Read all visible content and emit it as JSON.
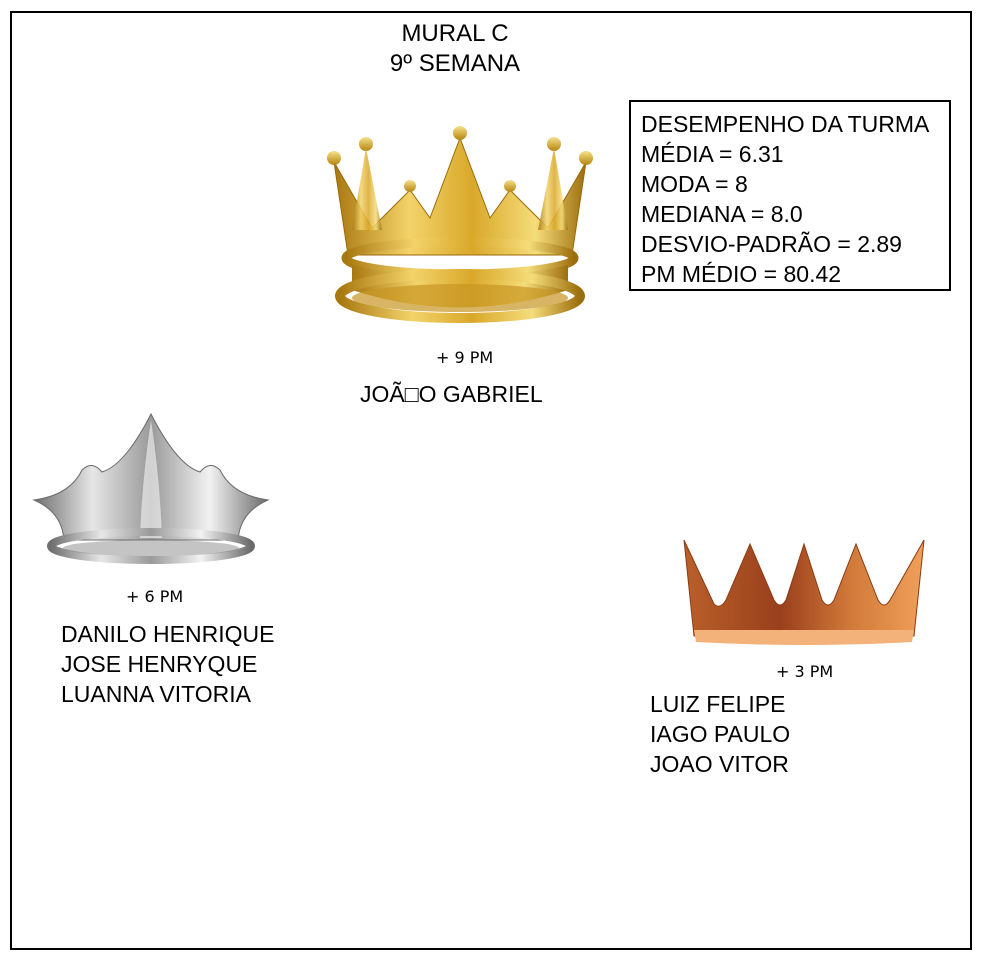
{
  "header": {
    "title": "MURAL C",
    "subtitle": "9º SEMANA"
  },
  "stats": {
    "heading": "DESEMPENHO DA TURMA",
    "lines": [
      "MÉDIA = 6.31",
      "MODA = 8",
      "MEDIANA = 8.0",
      "DESVIO-PADRÃO = 2.89",
      "PM MÉDIO = 80.42"
    ]
  },
  "gold": {
    "icon": "gold-crown-icon",
    "color": "#e0b43a",
    "pm": "+ 9 PM",
    "names": [
      "JOÃ□O GABRIEL"
    ]
  },
  "silver": {
    "icon": "silver-crown-icon",
    "color": "#c8c8c8",
    "pm": "+ 6 PM",
    "names": [
      "DANILO HENRIQUE",
      "JOSE HENRYQUE",
      "LUANNA VITORIA"
    ]
  },
  "bronze": {
    "icon": "bronze-crown-icon",
    "color": "#c8733a",
    "pm": "+ 3 PM",
    "names": [
      "LUIZ FELIPE",
      "IAGO PAULO",
      "JOAO VITOR"
    ]
  }
}
